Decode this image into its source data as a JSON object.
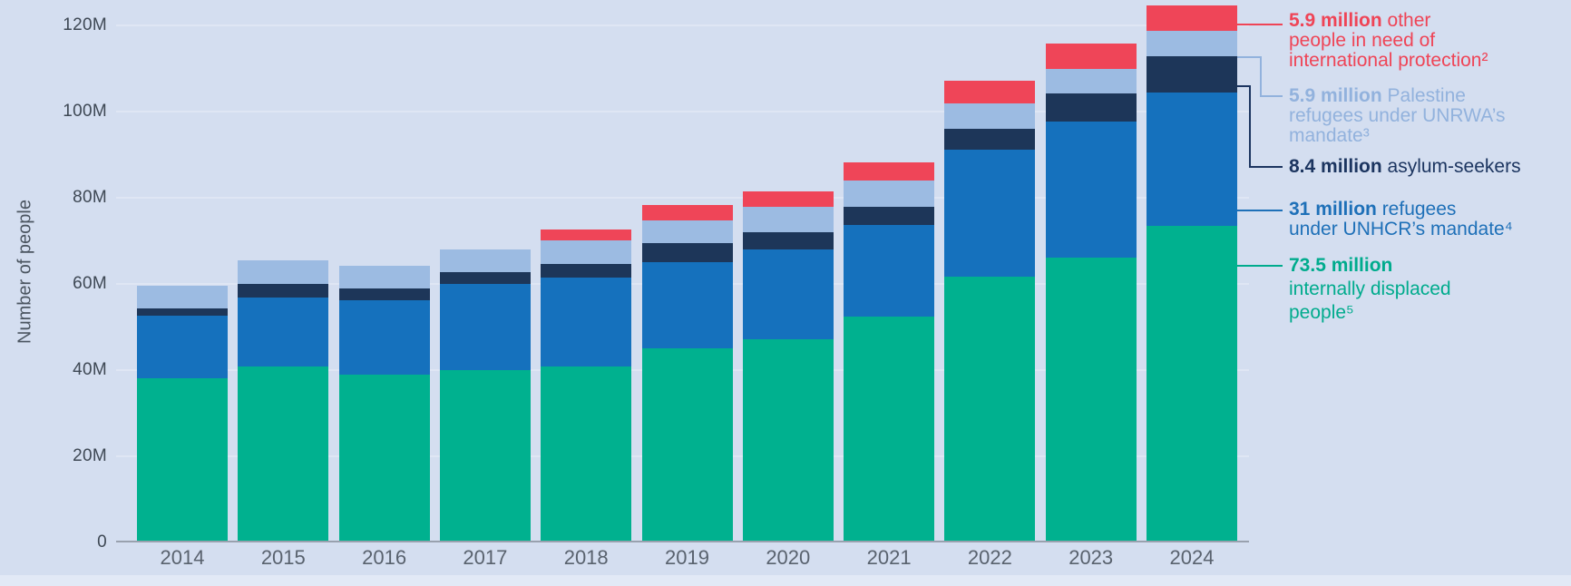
{
  "figure": {
    "background_color": "#D4DEF0",
    "footer_strip_color": "#E2E9F6"
  },
  "y_axis": {
    "title": "Number of people",
    "ticks": [
      {
        "label": "0",
        "value": 0
      },
      {
        "label": "20M",
        "value": 20
      },
      {
        "label": "40M",
        "value": 40
      },
      {
        "label": "60M",
        "value": 60
      },
      {
        "label": "80M",
        "value": 80
      },
      {
        "label": "100M",
        "value": 100
      },
      {
        "label": "120M",
        "value": 120
      }
    ]
  },
  "x_axis": {
    "labels": [
      "2014",
      "2015",
      "2016",
      "2017",
      "2018",
      "2019",
      "2020",
      "2021",
      "2022",
      "2023",
      "2024"
    ]
  },
  "chart_data": {
    "type": "bar",
    "stacked": true,
    "unit": "millions of people",
    "title": "",
    "xlabel": "",
    "ylabel": "Number of people",
    "ylim": [
      0,
      130
    ],
    "grid": true,
    "legend_position": "right",
    "categories": [
      "2014",
      "2015",
      "2016",
      "2017",
      "2018",
      "2019",
      "2020",
      "2021",
      "2022",
      "2023",
      "2024"
    ],
    "series": [
      {
        "name": "internally displaced people",
        "color": "#00B18F",
        "values": [
          38.2,
          40.8,
          39.0,
          40.0,
          40.8,
          45.0,
          47.2,
          52.4,
          61.7,
          66.1,
          73.5
        ]
      },
      {
        "name": "refugees under UNHCR’s mandate",
        "color": "#1571BD",
        "values": [
          14.4,
          16.1,
          17.2,
          20.0,
          20.7,
          20.0,
          20.8,
          21.3,
          29.5,
          31.6,
          31.0
        ]
      },
      {
        "name": "asylum-seekers",
        "color": "#1D3659",
        "values": [
          1.8,
          3.2,
          2.8,
          2.8,
          3.2,
          4.5,
          4.0,
          4.2,
          4.8,
          6.5,
          8.4
        ]
      },
      {
        "name": "Palestine refugees under UNRWA’s mandate",
        "color": "#9CBBE2",
        "values": [
          5.2,
          5.3,
          5.3,
          5.3,
          5.4,
          5.2,
          5.9,
          6.1,
          5.9,
          5.7,
          5.9
        ]
      },
      {
        "name": "other people in need of international protection",
        "color": "#EF4558",
        "values": [
          0,
          0,
          0,
          0,
          2.5,
          3.6,
          3.6,
          4.2,
          5.3,
          5.9,
          5.9
        ]
      }
    ]
  },
  "legend": {
    "items": [
      {
        "series": "other people in need of international protection",
        "bold": "5.9 million",
        "lines": [
          "5.9 million other",
          "people in need of",
          "international protection²"
        ],
        "color": "#EF4456"
      },
      {
        "series": "Palestine refugees under UNRWA’s mandate",
        "bold": "5.9 million",
        "lines": [
          "5.9 million Palestine",
          "refugees under UNRWA’s",
          "mandate³"
        ],
        "color": "#92B2DD"
      },
      {
        "series": "asylum-seekers",
        "bold": "8.4 million",
        "lines": [
          "8.4 million asylum-seekers"
        ],
        "color": "#1C3560"
      },
      {
        "series": "refugees under UNHCR’s mandate",
        "bold": "31 million",
        "lines": [
          "31 million refugees",
          "under UNHCR’s mandate⁴"
        ],
        "color": "#1E70B8"
      },
      {
        "series": "internally displaced people",
        "bold": "73.5 million",
        "lines": [
          "73.5 million",
          "internally displaced",
          "people⁵"
        ],
        "color": "#00AB8D"
      }
    ]
  }
}
